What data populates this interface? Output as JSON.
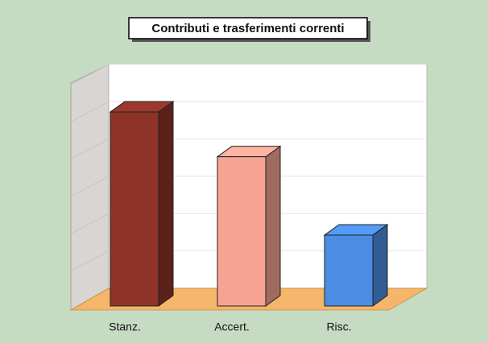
{
  "chart_data": {
    "type": "bar3d",
    "title": "Contributi e trasferimenti correnti",
    "categories": [
      "Stanz.",
      "Accert.",
      "Risc."
    ],
    "values": [
      5.2,
      4.0,
      1.9
    ],
    "colors": [
      "#8e3328",
      "#f7a394",
      "#4b8de3"
    ],
    "ylim": [
      0,
      6
    ],
    "yticks": [
      1,
      2,
      3,
      4,
      5,
      6
    ],
    "grid": true
  }
}
